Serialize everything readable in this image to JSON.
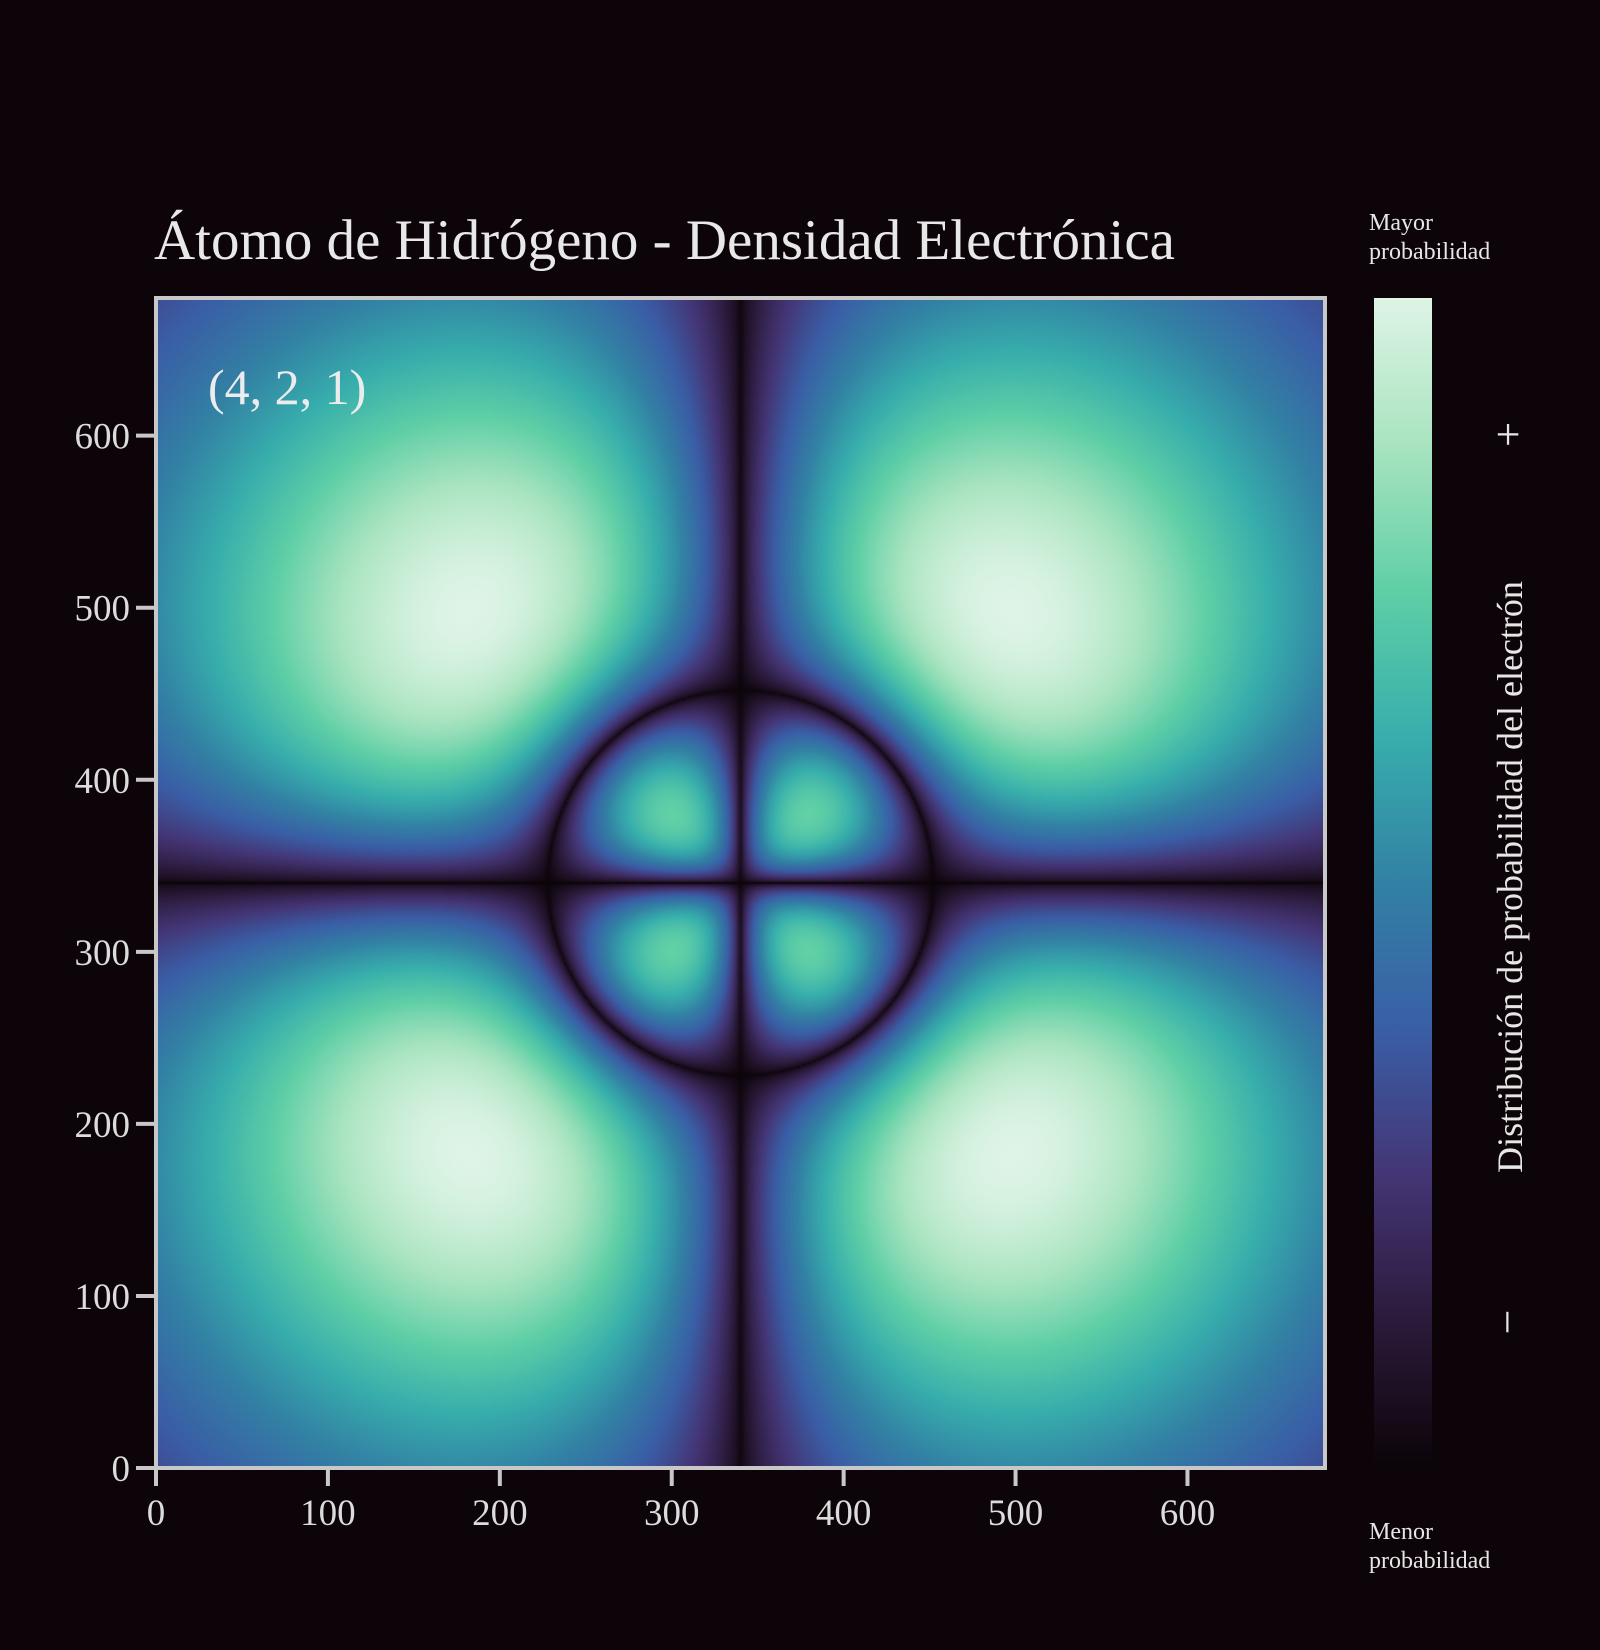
{
  "chart_data": {
    "type": "heatmap",
    "title": "Átomo de Hidrógeno - Densidad Electrónica",
    "annotation": "(4, 2, 1)",
    "quantum_numbers": {
      "n": 4,
      "l": 2,
      "m": 1
    },
    "xlim": [
      0,
      680
    ],
    "ylim": [
      0,
      680
    ],
    "center": [
      340,
      340
    ],
    "x_ticks": [
      0,
      100,
      200,
      300,
      400,
      500,
      600
    ],
    "y_ticks": [
      0,
      100,
      200,
      300,
      400,
      500,
      600
    ],
    "x_tick_labels": [
      "0",
      "100",
      "200",
      "300",
      "400",
      "500",
      "600"
    ],
    "y_tick_labels": [
      "0",
      "100",
      "200",
      "300",
      "400",
      "500",
      "600"
    ],
    "nodal_lines": {
      "vertical_x": 340,
      "horizontal_y": 340,
      "circle_radius": 112
    },
    "lobes": [
      {
        "x": 303,
        "y": 373,
        "intensity": "max"
      },
      {
        "x": 377,
        "y": 373,
        "intensity": "max"
      },
      {
        "x": 303,
        "y": 303,
        "intensity": "max"
      },
      {
        "x": 377,
        "y": 303,
        "intensity": "max"
      },
      {
        "x": 210,
        "y": 488,
        "intensity": "medium"
      },
      {
        "x": 470,
        "y": 488,
        "intensity": "medium"
      },
      {
        "x": 210,
        "y": 208,
        "intensity": "medium"
      },
      {
        "x": 470,
        "y": 208,
        "intensity": "medium"
      }
    ],
    "colormap": [
      "#0b0408",
      "#2b1a3a",
      "#443575",
      "#3a5ea6",
      "#3281a4",
      "#37aeac",
      "#5fcfa6",
      "#a9e4c0",
      "#def4e6"
    ],
    "colorbar": {
      "label": "Distribución de probabilidad del electrón",
      "top_label": [
        "Mayor",
        "probabilidad"
      ],
      "bottom_label": [
        "Menor",
        "probabilidad"
      ],
      "plus_symbol": "+",
      "minus_symbol": "−"
    },
    "grid": false,
    "colors": {
      "background": "#0c0408",
      "axes": "#c8c8c8",
      "text": "#e6e6e6"
    }
  }
}
